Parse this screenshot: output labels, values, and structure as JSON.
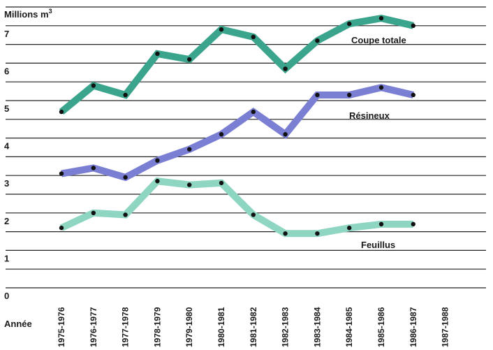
{
  "chart_data": {
    "type": "line",
    "ylabel": "Millions m",
    "ylabel_sup": "3",
    "xlabel": "Année",
    "ylim": [
      0,
      7.5
    ],
    "yticks": [
      "0",
      "1",
      "2",
      "3",
      "4",
      "5",
      "6",
      "7"
    ],
    "grid": true,
    "categories": [
      "1975-1976",
      "1976-1977",
      "1977-1978",
      "1978-1979",
      "1979-1980",
      "1980-1981",
      "1981-1982",
      "1982-1983",
      "1983-1984",
      "1984-1985",
      "1985-1986",
      "1986-1987",
      "1987-1988"
    ],
    "series": [
      {
        "name": "Coupe totale",
        "color": "#3aa58c",
        "values": [
          4.7,
          5.4,
          5.15,
          6.25,
          6.1,
          6.9,
          6.7,
          5.85,
          6.6,
          7.05,
          7.2,
          7.0,
          null
        ]
      },
      {
        "name": "Résineux",
        "color": "#7b7fd3",
        "values": [
          3.05,
          3.2,
          2.95,
          3.4,
          3.7,
          4.1,
          4.7,
          4.1,
          5.15,
          5.15,
          5.35,
          5.15,
          null
        ]
      },
      {
        "name": "Feuillus",
        "color": "#8fd6c2",
        "values": [
          1.6,
          2.0,
          1.95,
          2.85,
          2.75,
          2.8,
          1.95,
          1.45,
          1.45,
          1.6,
          1.7,
          1.7,
          null
        ]
      }
    ]
  }
}
